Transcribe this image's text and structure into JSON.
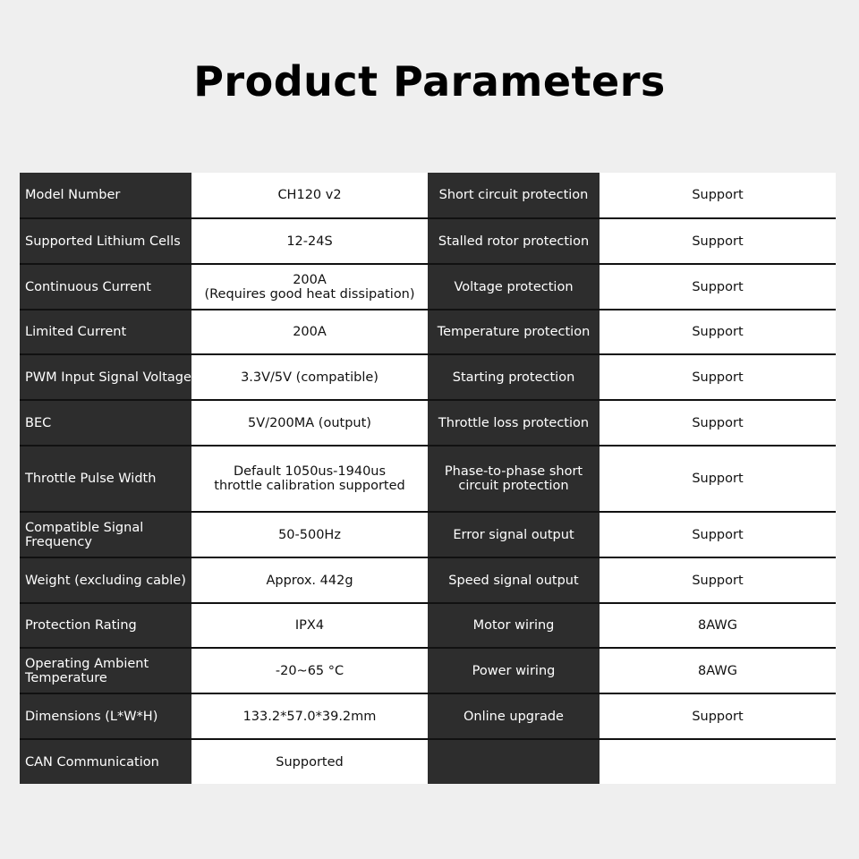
{
  "title": "Product Parameters",
  "rows": [
    {
      "l1": "Model Number",
      "v1": "CH120 v2",
      "l2": "Short circuit protection",
      "v2": "Support"
    },
    {
      "l1": "Supported Lithium Cells",
      "v1": "12-24S",
      "l2": "Stalled rotor protection",
      "v2": "Support"
    },
    {
      "l1": "Continuous Current",
      "v1": "200A\n(Requires good heat dissipation)",
      "l2": "Voltage protection",
      "v2": "Support"
    },
    {
      "l1": "Limited Current",
      "v1": "200A",
      "l2": "Temperature protection",
      "v2": "Support"
    },
    {
      "l1": "PWM Input Signal Voltage",
      "v1": "3.3V/5V (compatible)",
      "l2": "Starting protection",
      "v2": "Support"
    },
    {
      "l1": "BEC",
      "v1": "5V/200MA (output)",
      "l2": "Throttle loss protection",
      "v2": "Support"
    },
    {
      "l1": "Throttle Pulse Width",
      "v1": "Default 1050us-1940us\nthrottle calibration supported",
      "l2": "Phase-to-phase short\ncircuit protection",
      "v2": "Support"
    },
    {
      "l1": "Compatible Signal\nFrequency",
      "v1": "50-500Hz",
      "l2": "Error signal output",
      "v2": "Support"
    },
    {
      "l1": "Weight (excluding cable)",
      "v1": "Approx. 442g",
      "l2": "Speed signal output",
      "v2": "Support"
    },
    {
      "l1": "Protection Rating",
      "v1": "IPX4",
      "l2": "Motor wiring",
      "v2": "8AWG"
    },
    {
      "l1": "Operating Ambient\nTemperature",
      "v1": "-20~65 °C",
      "l2": "Power wiring",
      "v2": "8AWG"
    },
    {
      "l1": "Dimensions (L*W*H)",
      "v1": "133.2*57.0*39.2mm",
      "l2": "Online upgrade",
      "v2": "Support"
    },
    {
      "l1": "CAN Communication",
      "v1": "Supported",
      "l2": "",
      "v2": ""
    }
  ]
}
